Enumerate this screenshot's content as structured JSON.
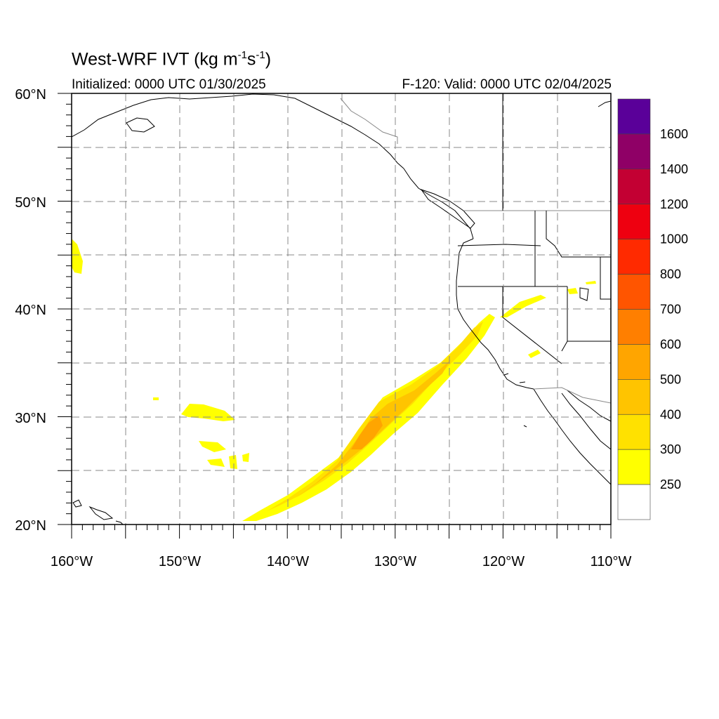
{
  "title": {
    "main": "West-WRF IVT (kg m",
    "exp1": "-1",
    "mid": "s",
    "exp2": "-1",
    "end": ")"
  },
  "subtitle": {
    "initialized": "Initialized: 0000 UTC 01/30/2025",
    "valid": "F-120: Valid: 0000 UTC 02/04/2025"
  },
  "map": {
    "lat_range": [
      20,
      60
    ],
    "lon_range": [
      -160,
      -110
    ],
    "lat_ticks": [
      "60°N",
      "50°N",
      "40°N",
      "30°N",
      "20°N"
    ],
    "lon_ticks": [
      "160°W",
      "150°W",
      "140°W",
      "130°W",
      "120°W",
      "110°W"
    ],
    "grid": "dashed every 5°",
    "field": "Integrated Water Vapor Transport",
    "colors": {
      "coast": "#000000",
      "border": "#888888",
      "grid": "#888888"
    }
  },
  "colorbar": {
    "labels": [
      "1600",
      "1400",
      "1200",
      "1000",
      "800",
      "700",
      "600",
      "500",
      "400",
      "300",
      "250"
    ],
    "colors": [
      "#5a0099",
      "#8f0066",
      "#c30033",
      "#ee0010",
      "#ff2a00",
      "#ff5500",
      "#ff7f00",
      "#ffa500",
      "#ffc400",
      "#ffe100",
      "#ffff00",
      "#ffffff"
    ]
  }
}
